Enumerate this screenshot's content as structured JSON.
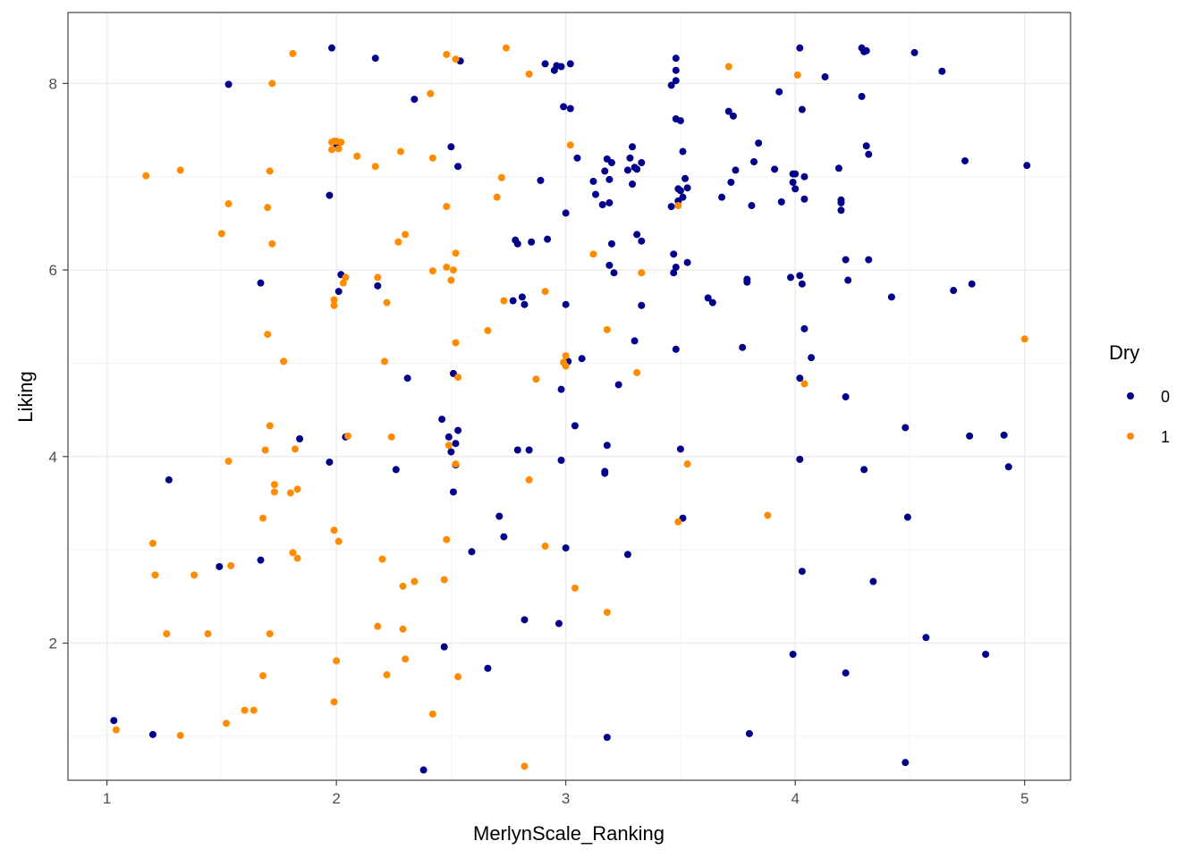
{
  "chart_data": {
    "type": "scatter",
    "title": "",
    "xlabel": "MerlynScale_Ranking",
    "ylabel": "Liking",
    "xlim": [
      0.83,
      5.2
    ],
    "ylim": [
      0.53,
      8.76
    ],
    "x_ticks": [
      1,
      2,
      3,
      4,
      5
    ],
    "y_ticks": [
      2,
      4,
      6,
      8
    ],
    "grid": true,
    "theme": "bw",
    "legend": {
      "title": "Dry",
      "position": "right"
    },
    "series": [
      {
        "name": "0",
        "color": "#00008B",
        "points": [
          [
            1.03,
            1.17
          ],
          [
            1.2,
            1.02
          ],
          [
            1.27,
            3.75
          ],
          [
            1.49,
            2.82
          ],
          [
            1.53,
            7.99
          ],
          [
            1.67,
            5.86
          ],
          [
            1.67,
            2.89
          ],
          [
            1.84,
            4.19
          ],
          [
            1.97,
            6.8
          ],
          [
            1.97,
            3.94
          ],
          [
            1.98,
            8.38
          ],
          [
            2.0,
            7.35
          ],
          [
            2.01,
            5.77
          ],
          [
            2.02,
            5.95
          ],
          [
            2.04,
            4.21
          ],
          [
            2.17,
            8.27
          ],
          [
            2.18,
            5.83
          ],
          [
            2.26,
            3.86
          ],
          [
            2.31,
            4.84
          ],
          [
            2.34,
            7.83
          ],
          [
            2.38,
            0.64
          ],
          [
            2.46,
            4.4
          ],
          [
            2.47,
            1.96
          ],
          [
            2.49,
            4.21
          ],
          [
            2.5,
            4.05
          ],
          [
            2.5,
            7.32
          ],
          [
            2.51,
            3.62
          ],
          [
            2.51,
            4.89
          ],
          [
            2.52,
            3.91
          ],
          [
            2.52,
            4.14
          ],
          [
            2.53,
            4.28
          ],
          [
            2.53,
            7.11
          ],
          [
            2.54,
            8.24
          ],
          [
            2.59,
            2.98
          ],
          [
            2.66,
            1.73
          ],
          [
            2.71,
            3.36
          ],
          [
            2.73,
            3.14
          ],
          [
            2.77,
            5.67
          ],
          [
            2.78,
            6.32
          ],
          [
            2.79,
            6.28
          ],
          [
            2.79,
            4.07
          ],
          [
            2.81,
            5.71
          ],
          [
            2.82,
            5.63
          ],
          [
            2.82,
            2.25
          ],
          [
            2.84,
            4.07
          ],
          [
            2.85,
            6.3
          ],
          [
            2.89,
            6.96
          ],
          [
            2.91,
            8.21
          ],
          [
            2.92,
            6.33
          ],
          [
            2.95,
            8.14
          ],
          [
            2.96,
            8.19
          ],
          [
            2.97,
            2.21
          ],
          [
            2.98,
            8.18
          ],
          [
            2.98,
            3.96
          ],
          [
            2.98,
            4.72
          ],
          [
            2.99,
            7.75
          ],
          [
            3.0,
            6.61
          ],
          [
            3.0,
            3.02
          ],
          [
            3.0,
            5.63
          ],
          [
            3.01,
            5.02
          ],
          [
            3.02,
            7.73
          ],
          [
            3.02,
            8.21
          ],
          [
            3.04,
            4.33
          ],
          [
            3.05,
            7.2
          ],
          [
            3.07,
            5.05
          ],
          [
            3.12,
            6.95
          ],
          [
            3.13,
            6.81
          ],
          [
            3.16,
            6.7
          ],
          [
            3.17,
            7.06
          ],
          [
            3.17,
            3.84
          ],
          [
            3.17,
            3.82
          ],
          [
            3.18,
            7.19
          ],
          [
            3.18,
            4.12
          ],
          [
            3.18,
            0.99
          ],
          [
            3.19,
            6.05
          ],
          [
            3.19,
            6.97
          ],
          [
            3.19,
            6.72
          ],
          [
            3.2,
            6.28
          ],
          [
            3.2,
            7.15
          ],
          [
            3.21,
            5.97
          ],
          [
            3.23,
            4.77
          ],
          [
            3.27,
            2.95
          ],
          [
            3.27,
            7.07
          ],
          [
            3.28,
            7.2
          ],
          [
            3.29,
            7.32
          ],
          [
            3.29,
            6.92
          ],
          [
            3.3,
            7.1
          ],
          [
            3.3,
            5.24
          ],
          [
            3.31,
            6.38
          ],
          [
            3.31,
            7.08
          ],
          [
            3.33,
            6.31
          ],
          [
            3.33,
            7.15
          ],
          [
            3.33,
            5.62
          ],
          [
            3.46,
            7.98
          ],
          [
            3.46,
            6.68
          ],
          [
            3.47,
            5.97
          ],
          [
            3.47,
            6.17
          ],
          [
            3.48,
            8.03
          ],
          [
            3.48,
            6.03
          ],
          [
            3.48,
            5.15
          ],
          [
            3.48,
            7.62
          ],
          [
            3.48,
            8.27
          ],
          [
            3.48,
            8.14
          ],
          [
            3.49,
            6.74
          ],
          [
            3.49,
            6.87
          ],
          [
            3.5,
            6.85
          ],
          [
            3.5,
            7.6
          ],
          [
            3.5,
            4.08
          ],
          [
            3.51,
            3.34
          ],
          [
            3.51,
            6.78
          ],
          [
            3.51,
            7.27
          ],
          [
            3.52,
            6.98
          ],
          [
            3.53,
            6.88
          ],
          [
            3.53,
            6.08
          ],
          [
            3.62,
            5.7
          ],
          [
            3.64,
            5.65
          ],
          [
            3.68,
            6.78
          ],
          [
            3.71,
            7.7
          ],
          [
            3.72,
            6.94
          ],
          [
            3.73,
            7.65
          ],
          [
            3.74,
            7.07
          ],
          [
            3.77,
            5.17
          ],
          [
            3.79,
            5.87
          ],
          [
            3.79,
            5.9
          ],
          [
            3.8,
            1.03
          ],
          [
            3.81,
            6.69
          ],
          [
            3.82,
            7.16
          ],
          [
            3.84,
            7.36
          ],
          [
            3.91,
            7.08
          ],
          [
            3.93,
            7.91
          ],
          [
            3.94,
            6.73
          ],
          [
            3.98,
            5.92
          ],
          [
            3.99,
            7.03
          ],
          [
            3.99,
            1.88
          ],
          [
            3.99,
            6.94
          ],
          [
            4.0,
            6.87
          ],
          [
            4.0,
            7.03
          ],
          [
            4.02,
            8.38
          ],
          [
            4.02,
            3.97
          ],
          [
            4.02,
            5.94
          ],
          [
            4.02,
            4.84
          ],
          [
            4.03,
            5.85
          ],
          [
            4.03,
            2.77
          ],
          [
            4.03,
            7.72
          ],
          [
            4.04,
            6.76
          ],
          [
            4.04,
            7.0
          ],
          [
            4.04,
            5.37
          ],
          [
            4.07,
            5.06
          ],
          [
            4.13,
            8.07
          ],
          [
            4.19,
            7.09
          ],
          [
            4.2,
            6.75
          ],
          [
            4.2,
            6.72
          ],
          [
            4.2,
            6.64
          ],
          [
            4.22,
            6.11
          ],
          [
            4.22,
            4.64
          ],
          [
            4.22,
            1.68
          ],
          [
            4.23,
            5.89
          ],
          [
            4.29,
            8.38
          ],
          [
            4.29,
            7.86
          ],
          [
            4.3,
            8.34
          ],
          [
            4.3,
            3.86
          ],
          [
            4.31,
            7.33
          ],
          [
            4.31,
            8.35
          ],
          [
            4.32,
            7.24
          ],
          [
            4.32,
            6.11
          ],
          [
            4.34,
            2.66
          ],
          [
            4.42,
            5.71
          ],
          [
            4.48,
            4.31
          ],
          [
            4.48,
            0.72
          ],
          [
            4.49,
            3.35
          ],
          [
            4.52,
            8.33
          ],
          [
            4.57,
            2.06
          ],
          [
            4.64,
            8.13
          ],
          [
            4.69,
            5.78
          ],
          [
            4.74,
            7.17
          ],
          [
            4.76,
            4.22
          ],
          [
            4.77,
            5.85
          ],
          [
            4.83,
            1.88
          ],
          [
            4.91,
            4.23
          ],
          [
            4.93,
            3.89
          ],
          [
            5.01,
            7.12
          ]
        ]
      },
      {
        "name": "1",
        "color": "#FF8C00",
        "points": [
          [
            1.04,
            1.07
          ],
          [
            1.17,
            7.01
          ],
          [
            1.2,
            3.07
          ],
          [
            1.21,
            2.73
          ],
          [
            1.26,
            2.1
          ],
          [
            1.32,
            1.01
          ],
          [
            1.32,
            7.07
          ],
          [
            1.38,
            2.73
          ],
          [
            1.44,
            2.1
          ],
          [
            1.5,
            6.39
          ],
          [
            1.52,
            1.14
          ],
          [
            1.53,
            3.95
          ],
          [
            1.53,
            6.71
          ],
          [
            1.54,
            2.83
          ],
          [
            1.6,
            1.28
          ],
          [
            1.64,
            1.28
          ],
          [
            1.68,
            1.65
          ],
          [
            1.68,
            3.34
          ],
          [
            1.69,
            4.07
          ],
          [
            1.7,
            6.67
          ],
          [
            1.7,
            5.31
          ],
          [
            1.71,
            4.33
          ],
          [
            1.71,
            7.06
          ],
          [
            1.71,
            2.1
          ],
          [
            1.72,
            8.0
          ],
          [
            1.72,
            6.28
          ],
          [
            1.73,
            3.7
          ],
          [
            1.73,
            3.62
          ],
          [
            1.77,
            5.02
          ],
          [
            1.8,
            3.61
          ],
          [
            1.81,
            8.32
          ],
          [
            1.81,
            2.97
          ],
          [
            1.82,
            4.08
          ],
          [
            1.83,
            3.65
          ],
          [
            1.83,
            2.91
          ],
          [
            1.98,
            7.37
          ],
          [
            1.98,
            7.29
          ],
          [
            1.99,
            7.38
          ],
          [
            1.99,
            5.62
          ],
          [
            1.99,
            5.68
          ],
          [
            1.99,
            1.37
          ],
          [
            1.99,
            3.21
          ],
          [
            2.0,
            1.81
          ],
          [
            2.0,
            7.38
          ],
          [
            2.01,
            7.3
          ],
          [
            2.01,
            3.09
          ],
          [
            2.02,
            7.37
          ],
          [
            2.03,
            5.86
          ],
          [
            2.04,
            5.92
          ],
          [
            2.05,
            4.22
          ],
          [
            2.09,
            7.22
          ],
          [
            2.17,
            7.11
          ],
          [
            2.18,
            5.92
          ],
          [
            2.18,
            2.18
          ],
          [
            2.2,
            2.9
          ],
          [
            2.21,
            5.02
          ],
          [
            2.22,
            5.65
          ],
          [
            2.22,
            1.66
          ],
          [
            2.24,
            4.21
          ],
          [
            2.27,
            6.3
          ],
          [
            2.28,
            7.27
          ],
          [
            2.29,
            2.61
          ],
          [
            2.29,
            2.15
          ],
          [
            2.3,
            6.38
          ],
          [
            2.3,
            1.83
          ],
          [
            2.34,
            2.66
          ],
          [
            2.41,
            7.89
          ],
          [
            2.42,
            1.24
          ],
          [
            2.42,
            7.2
          ],
          [
            2.42,
            5.99
          ],
          [
            2.47,
            2.68
          ],
          [
            2.48,
            6.03
          ],
          [
            2.48,
            3.11
          ],
          [
            2.48,
            6.68
          ],
          [
            2.48,
            8.31
          ],
          [
            2.49,
            4.12
          ],
          [
            2.5,
            5.89
          ],
          [
            2.51,
            6.0
          ],
          [
            2.52,
            8.26
          ],
          [
            2.52,
            3.92
          ],
          [
            2.52,
            5.22
          ],
          [
            2.52,
            6.18
          ],
          [
            2.53,
            1.64
          ],
          [
            2.53,
            4.85
          ],
          [
            2.66,
            5.35
          ],
          [
            2.7,
            6.78
          ],
          [
            2.72,
            6.99
          ],
          [
            2.73,
            5.67
          ],
          [
            2.74,
            8.38
          ],
          [
            2.82,
            0.68
          ],
          [
            2.84,
            3.75
          ],
          [
            2.84,
            8.1
          ],
          [
            2.87,
            4.83
          ],
          [
            2.91,
            5.77
          ],
          [
            2.91,
            3.04
          ],
          [
            2.99,
            5.01
          ],
          [
            3.0,
            5.08
          ],
          [
            3.0,
            4.97
          ],
          [
            3.02,
            7.34
          ],
          [
            3.04,
            2.59
          ],
          [
            3.12,
            6.17
          ],
          [
            3.18,
            5.36
          ],
          [
            3.18,
            2.33
          ],
          [
            3.31,
            4.9
          ],
          [
            3.33,
            5.97
          ],
          [
            3.49,
            3.3
          ],
          [
            3.49,
            6.69
          ],
          [
            3.53,
            3.92
          ],
          [
            3.71,
            8.18
          ],
          [
            3.88,
            3.37
          ],
          [
            4.01,
            8.09
          ],
          [
            4.04,
            4.78
          ],
          [
            5.0,
            5.26
          ]
        ]
      }
    ]
  }
}
